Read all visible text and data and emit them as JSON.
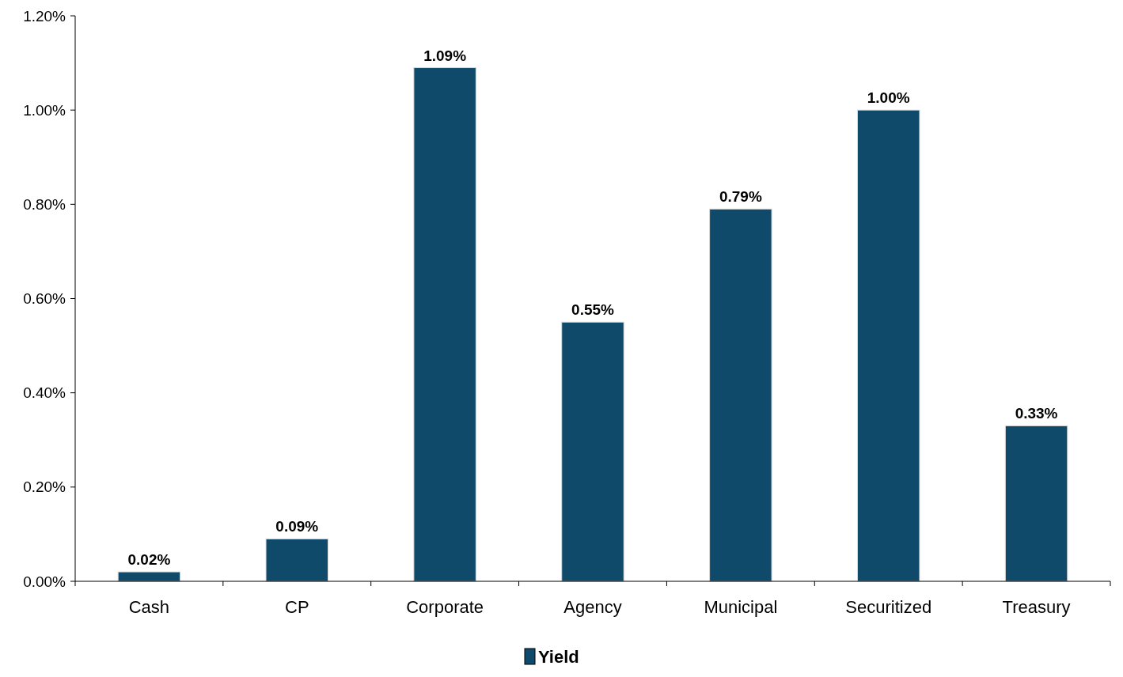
{
  "chart_data": {
    "type": "bar",
    "categories": [
      "Cash",
      "CP",
      "Corporate",
      "Agency",
      "Municipal",
      "Securitized",
      "Treasury"
    ],
    "series": [
      {
        "name": "Yield",
        "color": "#0f4a6b",
        "values": [
          0.02,
          0.09,
          1.09,
          0.55,
          0.79,
          1.0,
          0.33
        ]
      }
    ],
    "value_labels": [
      "0.02%",
      "0.09%",
      "1.09%",
      "0.55%",
      "0.79%",
      "1.00%",
      "0.33%"
    ],
    "ylim": [
      0,
      1.2
    ],
    "yticks": [
      {
        "value": 0,
        "label": "0.00%"
      },
      {
        "value": 0.2,
        "label": "0.20%"
      },
      {
        "value": 0.4,
        "label": "0.40%"
      },
      {
        "value": 0.6,
        "label": "0.60%"
      },
      {
        "value": 0.8,
        "label": "0.80%"
      },
      {
        "value": 1.0,
        "label": "1.00%"
      },
      {
        "value": 1.2,
        "label": "1.20%"
      }
    ],
    "grid": false,
    "legend": "bottom"
  }
}
